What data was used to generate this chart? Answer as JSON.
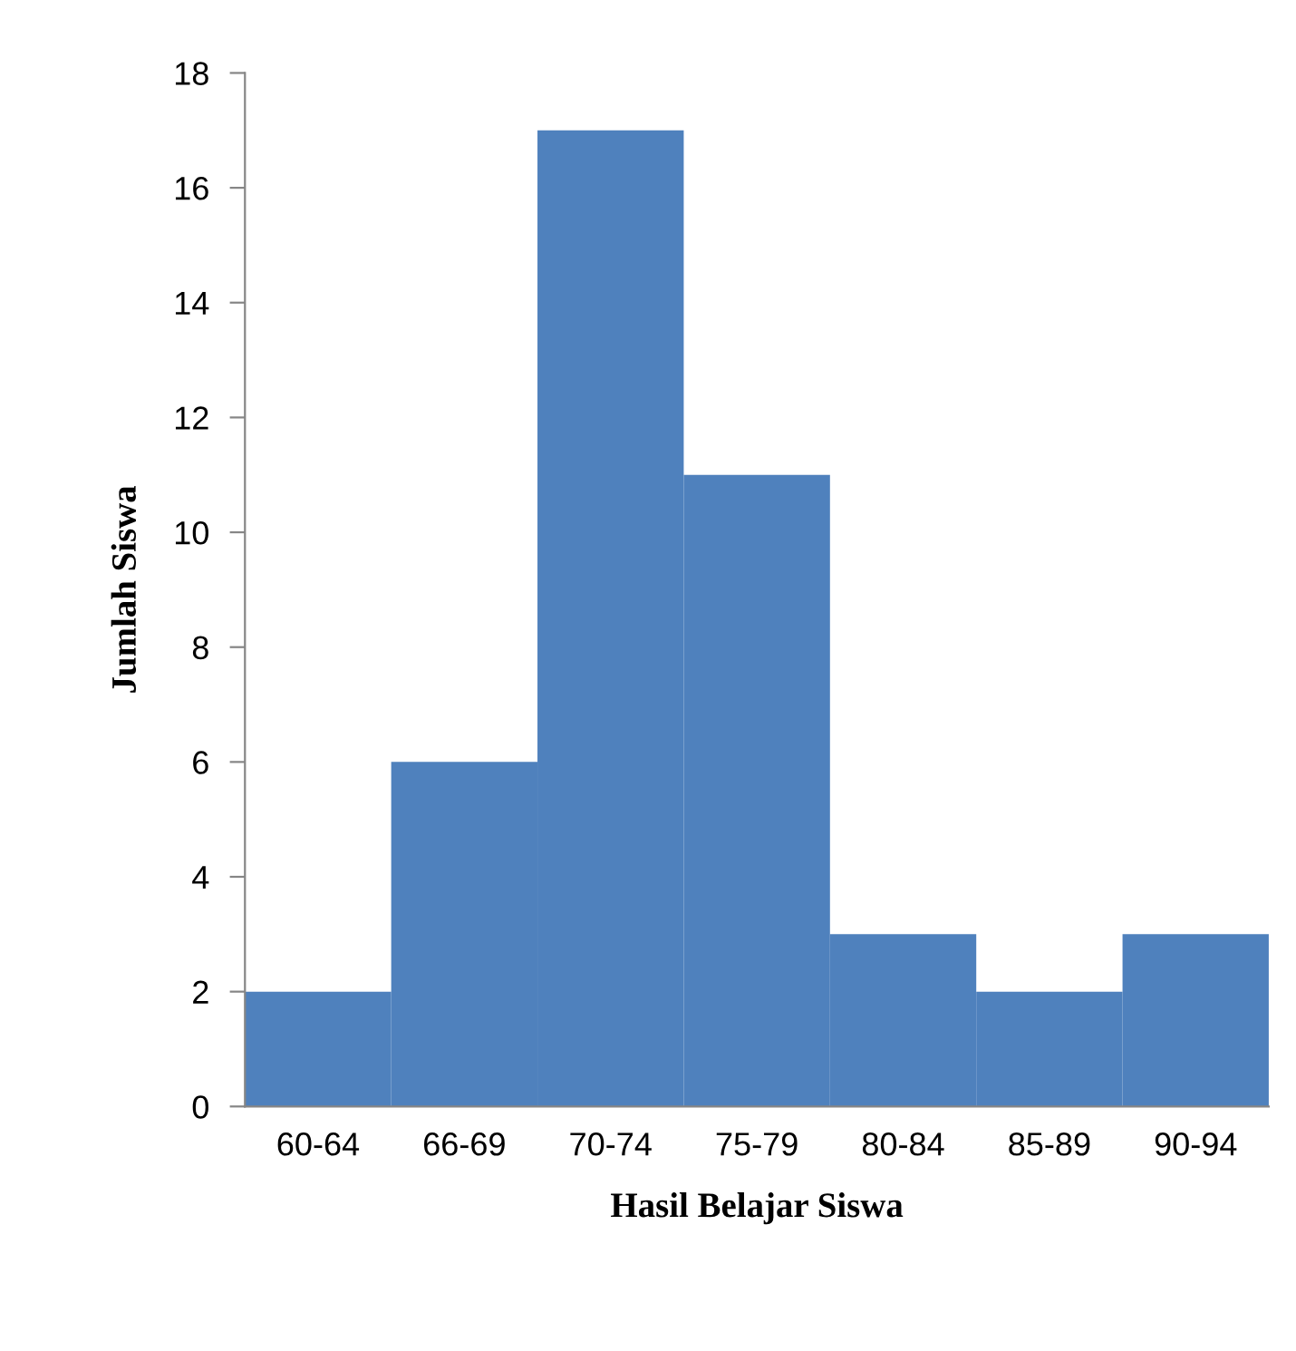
{
  "chart_data": {
    "type": "bar",
    "xlabel": "Hasil Belajar Siswa",
    "ylabel": "Jumlah Siswa",
    "categories": [
      "60-64",
      "66-69",
      "70-74",
      "75-79",
      "80-84",
      "85-89",
      "90-94"
    ],
    "values": [
      2,
      6,
      17,
      11,
      3,
      2,
      3
    ],
    "color": "#4f81bd",
    "ylim": [
      0,
      18
    ],
    "yticks": [
      0,
      2,
      4,
      6,
      8,
      10,
      12,
      14,
      16,
      18
    ],
    "grid": false,
    "legend": false
  }
}
